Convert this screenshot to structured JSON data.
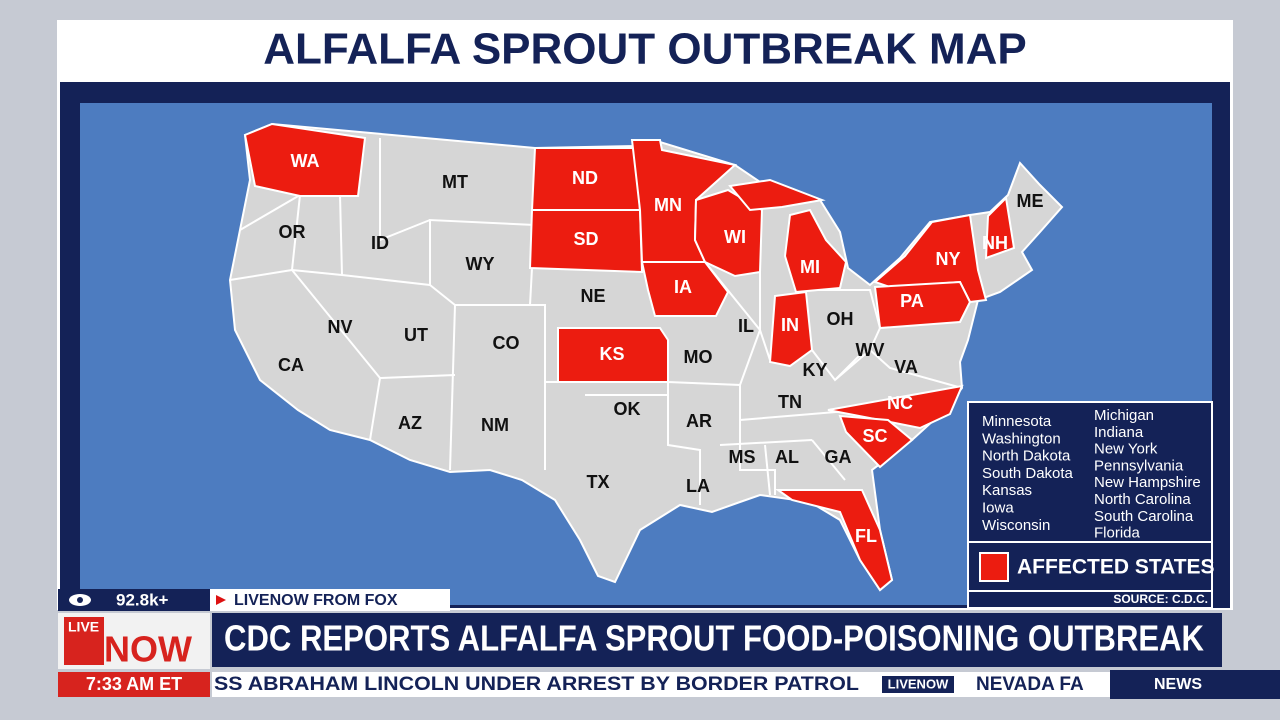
{
  "title": "ALFALFA SPROUT OUTBREAK MAP",
  "map": {
    "states": [
      {
        "label": "WA",
        "affected": true
      },
      {
        "label": "OR",
        "affected": false
      },
      {
        "label": "CA",
        "affected": false
      },
      {
        "label": "ID",
        "affected": false
      },
      {
        "label": "NV",
        "affected": false
      },
      {
        "label": "MT",
        "affected": false
      },
      {
        "label": "WY",
        "affected": false
      },
      {
        "label": "UT",
        "affected": false
      },
      {
        "label": "CO",
        "affected": false
      },
      {
        "label": "AZ",
        "affected": false
      },
      {
        "label": "NM",
        "affected": false
      },
      {
        "label": "ND",
        "affected": true
      },
      {
        "label": "SD",
        "affected": true
      },
      {
        "label": "NE",
        "affected": false
      },
      {
        "label": "KS",
        "affected": true
      },
      {
        "label": "OK",
        "affected": false
      },
      {
        "label": "TX",
        "affected": false
      },
      {
        "label": "MN",
        "affected": true
      },
      {
        "label": "IA",
        "affected": true
      },
      {
        "label": "MO",
        "affected": false
      },
      {
        "label": "AR",
        "affected": false
      },
      {
        "label": "LA",
        "affected": false
      },
      {
        "label": "WI",
        "affected": true
      },
      {
        "label": "IL",
        "affected": false
      },
      {
        "label": "MI",
        "affected": true
      },
      {
        "label": "IN",
        "affected": true
      },
      {
        "label": "OH",
        "affected": false
      },
      {
        "label": "KY",
        "affected": false
      },
      {
        "label": "TN",
        "affected": false
      },
      {
        "label": "MS",
        "affected": false
      },
      {
        "label": "AL",
        "affected": false
      },
      {
        "label": "GA",
        "affected": false
      },
      {
        "label": "FL",
        "affected": true
      },
      {
        "label": "SC",
        "affected": true
      },
      {
        "label": "NC",
        "affected": true
      },
      {
        "label": "VA",
        "affected": false
      },
      {
        "label": "WV",
        "affected": false
      },
      {
        "label": "PA",
        "affected": true
      },
      {
        "label": "NY",
        "affected": true
      },
      {
        "label": "NH",
        "affected": true
      },
      {
        "label": "ME",
        "affected": false
      }
    ]
  },
  "legend": {
    "left": [
      "Minnesota",
      "Washington",
      "North Dakota",
      "South Dakota",
      "Kansas",
      "Iowa",
      "Wisconsin"
    ],
    "right": [
      "Michigan",
      "Indiana",
      "New York",
      "Pennsylvania",
      "New Hampshire",
      "North Carolina",
      "South Carolina",
      "Florida"
    ],
    "key": "AFFECTED STATES",
    "source": "SOURCE: C.D.C."
  },
  "lower_third": {
    "viewers": "92.8k+",
    "channel": "LIVENOW FROM FOX",
    "logo": [
      "LIVE",
      "NOW"
    ],
    "headline": "CDC REPORTS ALFALFA SPROUT FOOD-POISONING OUTBREAK",
    "time": "7:33 AM ET",
    "ticker": "SS ABRAHAM LINCOLN UNDER ARREST BY BORDER PATROL",
    "ticker_logo": "LIVENOW",
    "ticker_next": "NEVADA FA",
    "section": "NEWS"
  }
}
